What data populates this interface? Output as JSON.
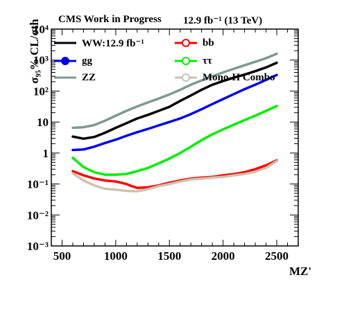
{
  "header": {
    "experiment": "CMS Work in Progress",
    "lumi": "12.9 fb⁻¹ (13 TeV)"
  },
  "chart_data": {
    "type": "line",
    "ylabel": "σ₉₅% CL/σth",
    "xlabel": "MZ'",
    "xlim": [
      400,
      2700
    ],
    "ylim": [
      0.001,
      10000
    ],
    "yscale": "log",
    "x_ticks": [
      500,
      1000,
      1500,
      2000,
      2500
    ],
    "y_ticks": [
      "10⁻³",
      "10⁻²",
      "10⁻¹",
      "1",
      "10",
      "10²",
      "10³",
      "10⁴"
    ],
    "legend_position": "top",
    "series": [
      {
        "name": "WW:12.9 fb⁻¹",
        "color": "#000000",
        "marker": "none",
        "x": [
          600,
          700,
          800,
          900,
          1000,
          1100,
          1200,
          1300,
          1400,
          1500,
          1600,
          1700,
          1800,
          1900,
          2000,
          2100,
          2200,
          2300,
          2400,
          2500
        ],
        "y": [
          3.4,
          2.9,
          3.3,
          4.5,
          6.5,
          9.2,
          13,
          17,
          23,
          31,
          48,
          72,
          110,
          160,
          210,
          270,
          340,
          440,
          580,
          820
        ]
      },
      {
        "name": "bb",
        "color": "#ff0000",
        "marker": "circle",
        "x": [
          600,
          700,
          800,
          900,
          1000,
          1100,
          1150,
          1200,
          1300,
          1400,
          1500,
          1600,
          1700,
          1800,
          1900,
          2000,
          2100,
          2200,
          2300,
          2400,
          2500
        ],
        "y": [
          0.26,
          0.19,
          0.15,
          0.13,
          0.12,
          0.1,
          0.085,
          0.075,
          0.078,
          0.09,
          0.11,
          0.13,
          0.15,
          0.16,
          0.17,
          0.19,
          0.21,
          0.24,
          0.3,
          0.4,
          0.58
        ]
      },
      {
        "name": "gg",
        "color": "#0000ee",
        "marker": "circle",
        "x": [
          600,
          700,
          800,
          900,
          1000,
          1100,
          1200,
          1300,
          1400,
          1500,
          1600,
          1700,
          1800,
          1900,
          2000,
          2100,
          2200,
          2300,
          2400,
          2500
        ],
        "y": [
          1.25,
          1.3,
          1.6,
          2.1,
          2.7,
          3.6,
          4.7,
          6,
          7.8,
          10,
          13,
          18,
          26,
          38,
          55,
          80,
          115,
          160,
          230,
          330
        ]
      },
      {
        "name": "ττ",
        "color": "#00ee00",
        "marker": "circle",
        "x": [
          600,
          700,
          800,
          900,
          1000,
          1100,
          1200,
          1300,
          1400,
          1500,
          1600,
          1700,
          1800,
          1900,
          2000,
          2100,
          2200,
          2300,
          2400,
          2500
        ],
        "y": [
          0.7,
          0.35,
          0.24,
          0.2,
          0.2,
          0.21,
          0.26,
          0.33,
          0.46,
          0.66,
          1.0,
          1.6,
          2.6,
          4.0,
          5.8,
          8.2,
          11.5,
          16,
          23,
          33
        ]
      },
      {
        "name": "ZZ",
        "color": "#7a9a8f",
        "marker": "none",
        "x": [
          600,
          700,
          800,
          900,
          1000,
          1100,
          1200,
          1300,
          1400,
          1500,
          1600,
          1700,
          1800,
          1900,
          2000,
          2100,
          2200,
          2300,
          2400,
          2500
        ],
        "y": [
          6.5,
          6.8,
          8,
          11,
          16,
          23,
          32,
          43,
          57,
          78,
          110,
          160,
          220,
          300,
          400,
          520,
          680,
          880,
          1150,
          1600
        ]
      },
      {
        "name": "Mono-H Combo",
        "color": "#cbc2b0",
        "marker": "circle",
        "x": [
          600,
          700,
          800,
          900,
          1000,
          1100,
          1200,
          1300,
          1400,
          1500,
          1600,
          1700,
          1800,
          1900,
          2000,
          2100,
          2200,
          2300,
          2400,
          2500
        ],
        "y": [
          0.22,
          0.13,
          0.09,
          0.07,
          0.065,
          0.06,
          0.058,
          0.068,
          0.085,
          0.1,
          0.12,
          0.14,
          0.15,
          0.16,
          0.17,
          0.19,
          0.21,
          0.25,
          0.33,
          0.55
        ]
      }
    ]
  }
}
